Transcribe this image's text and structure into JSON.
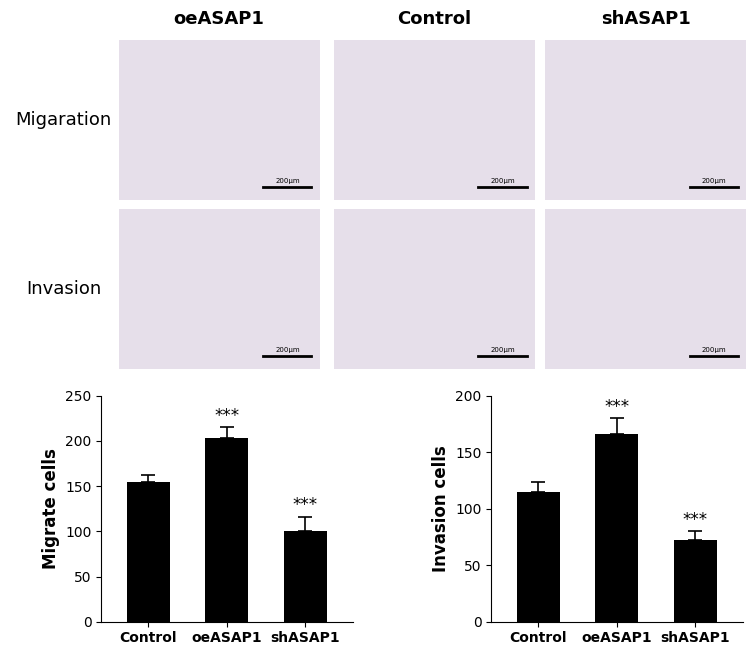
{
  "image_grid": {
    "columns": [
      "oeASAP1",
      "Control",
      "shASAP1"
    ],
    "rows": [
      "Migaration",
      "Invasion"
    ],
    "scale_bar": "200μm"
  },
  "chart_data": [
    {
      "type": "bar",
      "categories": [
        "Control",
        "oeASAP1",
        "shASAP1"
      ],
      "values": [
        154,
        203,
        100
      ],
      "errors": [
        8,
        12,
        16
      ],
      "color": "#000000",
      "y_label": "Migrate cells",
      "ylim": [
        0,
        250
      ],
      "yticks": [
        0,
        50,
        100,
        150,
        200,
        250
      ],
      "annotations": [
        {
          "category": "oeASAP1",
          "text": "***"
        },
        {
          "category": "shASAP1",
          "text": "***"
        }
      ]
    },
    {
      "type": "bar",
      "categories": [
        "Control",
        "oeASAP1",
        "shASAP1"
      ],
      "values": [
        115,
        166,
        72
      ],
      "errors": [
        9,
        14,
        8
      ],
      "color": "#000000",
      "y_label": "Invasion cells",
      "ylim": [
        0,
        200
      ],
      "yticks": [
        0,
        50,
        100,
        150,
        200
      ],
      "annotations": [
        {
          "category": "oeASAP1",
          "text": "***"
        },
        {
          "category": "shASAP1",
          "text": "***"
        }
      ]
    }
  ]
}
